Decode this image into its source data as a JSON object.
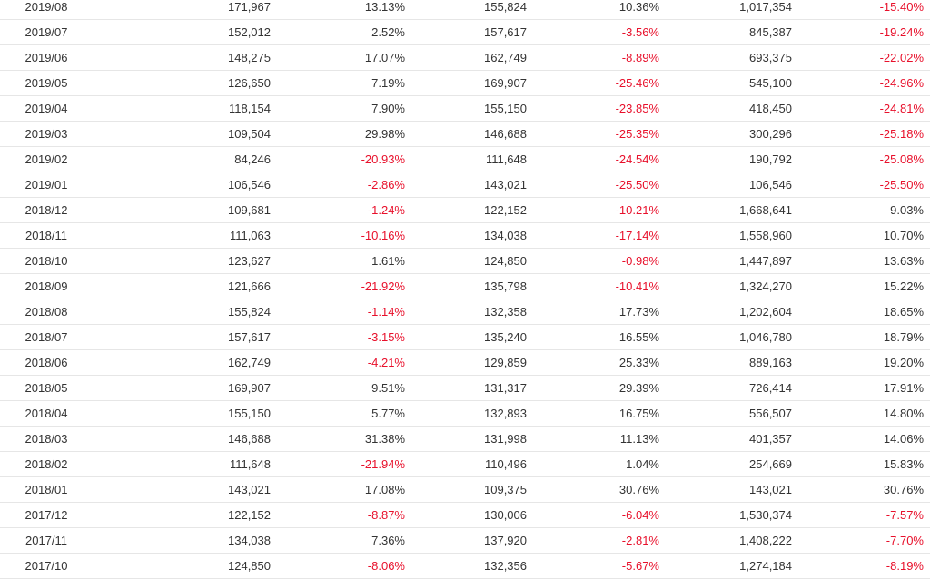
{
  "colors": {
    "text": "#333333",
    "negative": "#e8102b",
    "row_border": "#e6e6e6"
  },
  "rows": [
    [
      "2019/08",
      "171,967",
      "13.13%",
      "155,824",
      "10.36%",
      "1,017,354",
      "-15.40%"
    ],
    [
      "2019/07",
      "152,012",
      "2.52%",
      "157,617",
      "-3.56%",
      "845,387",
      "-19.24%"
    ],
    [
      "2019/06",
      "148,275",
      "17.07%",
      "162,749",
      "-8.89%",
      "693,375",
      "-22.02%"
    ],
    [
      "2019/05",
      "126,650",
      "7.19%",
      "169,907",
      "-25.46%",
      "545,100",
      "-24.96%"
    ],
    [
      "2019/04",
      "118,154",
      "7.90%",
      "155,150",
      "-23.85%",
      "418,450",
      "-24.81%"
    ],
    [
      "2019/03",
      "109,504",
      "29.98%",
      "146,688",
      "-25.35%",
      "300,296",
      "-25.18%"
    ],
    [
      "2019/02",
      "84,246",
      "-20.93%",
      "111,648",
      "-24.54%",
      "190,792",
      "-25.08%"
    ],
    [
      "2019/01",
      "106,546",
      "-2.86%",
      "143,021",
      "-25.50%",
      "106,546",
      "-25.50%"
    ],
    [
      "2018/12",
      "109,681",
      "-1.24%",
      "122,152",
      "-10.21%",
      "1,668,641",
      "9.03%"
    ],
    [
      "2018/11",
      "111,063",
      "-10.16%",
      "134,038",
      "-17.14%",
      "1,558,960",
      "10.70%"
    ],
    [
      "2018/10",
      "123,627",
      "1.61%",
      "124,850",
      "-0.98%",
      "1,447,897",
      "13.63%"
    ],
    [
      "2018/09",
      "121,666",
      "-21.92%",
      "135,798",
      "-10.41%",
      "1,324,270",
      "15.22%"
    ],
    [
      "2018/08",
      "155,824",
      "-1.14%",
      "132,358",
      "17.73%",
      "1,202,604",
      "18.65%"
    ],
    [
      "2018/07",
      "157,617",
      "-3.15%",
      "135,240",
      "16.55%",
      "1,046,780",
      "18.79%"
    ],
    [
      "2018/06",
      "162,749",
      "-4.21%",
      "129,859",
      "25.33%",
      "889,163",
      "19.20%"
    ],
    [
      "2018/05",
      "169,907",
      "9.51%",
      "131,317",
      "29.39%",
      "726,414",
      "17.91%"
    ],
    [
      "2018/04",
      "155,150",
      "5.77%",
      "132,893",
      "16.75%",
      "556,507",
      "14.80%"
    ],
    [
      "2018/03",
      "146,688",
      "31.38%",
      "131,998",
      "11.13%",
      "401,357",
      "14.06%"
    ],
    [
      "2018/02",
      "111,648",
      "-21.94%",
      "110,496",
      "1.04%",
      "254,669",
      "15.83%"
    ],
    [
      "2018/01",
      "143,021",
      "17.08%",
      "109,375",
      "30.76%",
      "143,021",
      "30.76%"
    ],
    [
      "2017/12",
      "122,152",
      "-8.87%",
      "130,006",
      "-6.04%",
      "1,530,374",
      "-7.57%"
    ],
    [
      "2017/11",
      "134,038",
      "7.36%",
      "137,920",
      "-2.81%",
      "1,408,222",
      "-7.70%"
    ],
    [
      "2017/10",
      "124,850",
      "-8.06%",
      "132,356",
      "-5.67%",
      "1,274,184",
      "-8.19%"
    ]
  ]
}
